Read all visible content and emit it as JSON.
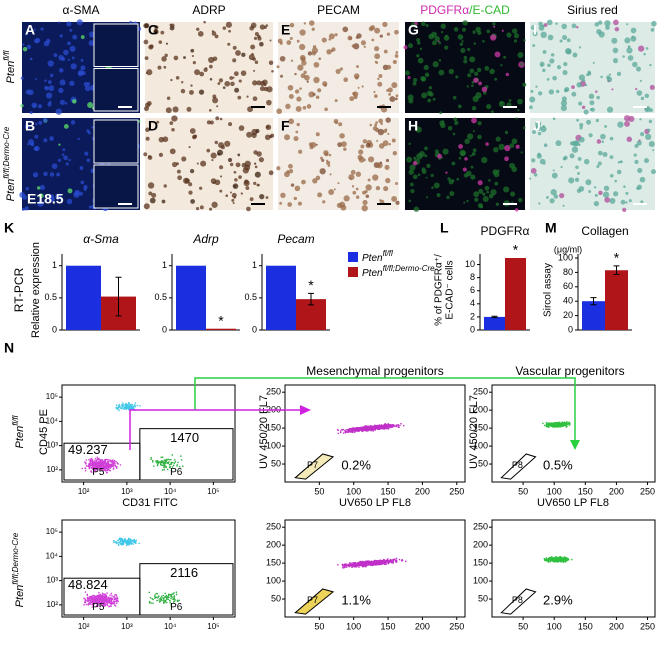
{
  "image_panels": [
    {
      "letter": "A",
      "label": "α-SMA"
    },
    {
      "letter": "B"
    },
    {
      "letter": "C",
      "label": "ADRP"
    },
    {
      "letter": "D"
    },
    {
      "letter": "E",
      "label": "PECAM"
    },
    {
      "letter": "F"
    },
    {
      "letter": "G",
      "label_parts": [
        "PDGFRα",
        "/E-CAD"
      ]
    },
    {
      "letter": "H"
    },
    {
      "letter": "I",
      "label": "Sirius red"
    },
    {
      "letter": "J"
    }
  ],
  "genotypes": [
    {
      "name": "Pten",
      "sup": "fl/fl",
      "color": "#1c2fe0"
    },
    {
      "name": "Pten",
      "sup": "fl/fl;Dermo-Cre",
      "color": "#b0151a"
    }
  ],
  "stage": "E18.5",
  "rt_pcr": {
    "letter": "K",
    "axis_labels": [
      "RT-PCR",
      "Relative expression"
    ]
  },
  "chart_data": [
    {
      "type": "bar",
      "title": "α-Sma",
      "values": [
        1,
        0.52
      ],
      "errors": [
        null,
        0.3
      ],
      "stars": [
        null,
        null
      ],
      "ylim": [
        0,
        1.12
      ],
      "yticks": [
        0,
        0.5,
        1
      ]
    },
    {
      "type": "bar",
      "title": "Adrp",
      "values": [
        1,
        0.02
      ],
      "errors": [
        null,
        null
      ],
      "stars": [
        null,
        "*"
      ],
      "ylim": [
        0,
        1.12
      ],
      "yticks": [
        0,
        0.5,
        1
      ]
    },
    {
      "type": "bar",
      "title": "Pecam",
      "values": [
        1,
        0.48
      ],
      "errors": [
        null,
        0.09
      ],
      "stars": [
        null,
        "*"
      ],
      "ylim": [
        0,
        1.12
      ],
      "yticks": [
        0,
        0.5,
        1
      ]
    },
    {
      "type": "bar",
      "letter": "L",
      "title": "PDGFRα",
      "y_label": [
        "% of PDGFRα⁺/",
        "E-CAD⁻ cells"
      ],
      "values": [
        2,
        11
      ],
      "errors": [
        0.1,
        null
      ],
      "stars": [
        null,
        "*"
      ],
      "ylim": [
        0,
        11
      ],
      "yticks": [
        0,
        2,
        4,
        6,
        8,
        10
      ]
    },
    {
      "type": "bar",
      "letter": "M",
      "title": "Collagen",
      "unit": "(μg/ml)",
      "y_label": [
        "Sircol assay"
      ],
      "values": [
        40,
        83
      ],
      "errors": [
        5,
        6
      ],
      "stars": [
        null,
        "*"
      ],
      "ylim": [
        0,
        100
      ],
      "yticks": [
        0,
        20,
        40,
        60,
        80,
        100
      ]
    }
  ],
  "flow": {
    "letter": "N",
    "headings": [
      "Mesenchymal progenitors",
      "Vascular progenitors"
    ],
    "axis_labels": {
      "cd45": "CD45 PE",
      "cd31": "CD31 FITC",
      "fl7": "UV 450/20 FL7",
      "fl8": "UV650 LP FL8"
    },
    "log_ticks": [
      {
        "value": 2,
        "label": "10²"
      },
      {
        "value": 3,
        "label": "10³"
      },
      {
        "value": 4,
        "label": "10⁴"
      },
      {
        "value": 5,
        "label": "10⁵"
      }
    ],
    "lin_ticks": [
      50,
      100,
      150,
      200,
      250
    ],
    "rows": [
      {
        "p5": "P5",
        "p6": "P6",
        "p5_count": "49.237",
        "p6_count": "1470",
        "p7": "P7",
        "p8": "P8",
        "pct_mes": "0.2%",
        "pct_vas": "0.5%"
      },
      {
        "p5": "P5",
        "p6": "P6",
        "p5_count": "48.824",
        "p6_count": "2116",
        "p7": "P7",
        "p8": "P8",
        "pct_mes": "1.1%",
        "pct_vas": "2.9%"
      }
    ]
  }
}
